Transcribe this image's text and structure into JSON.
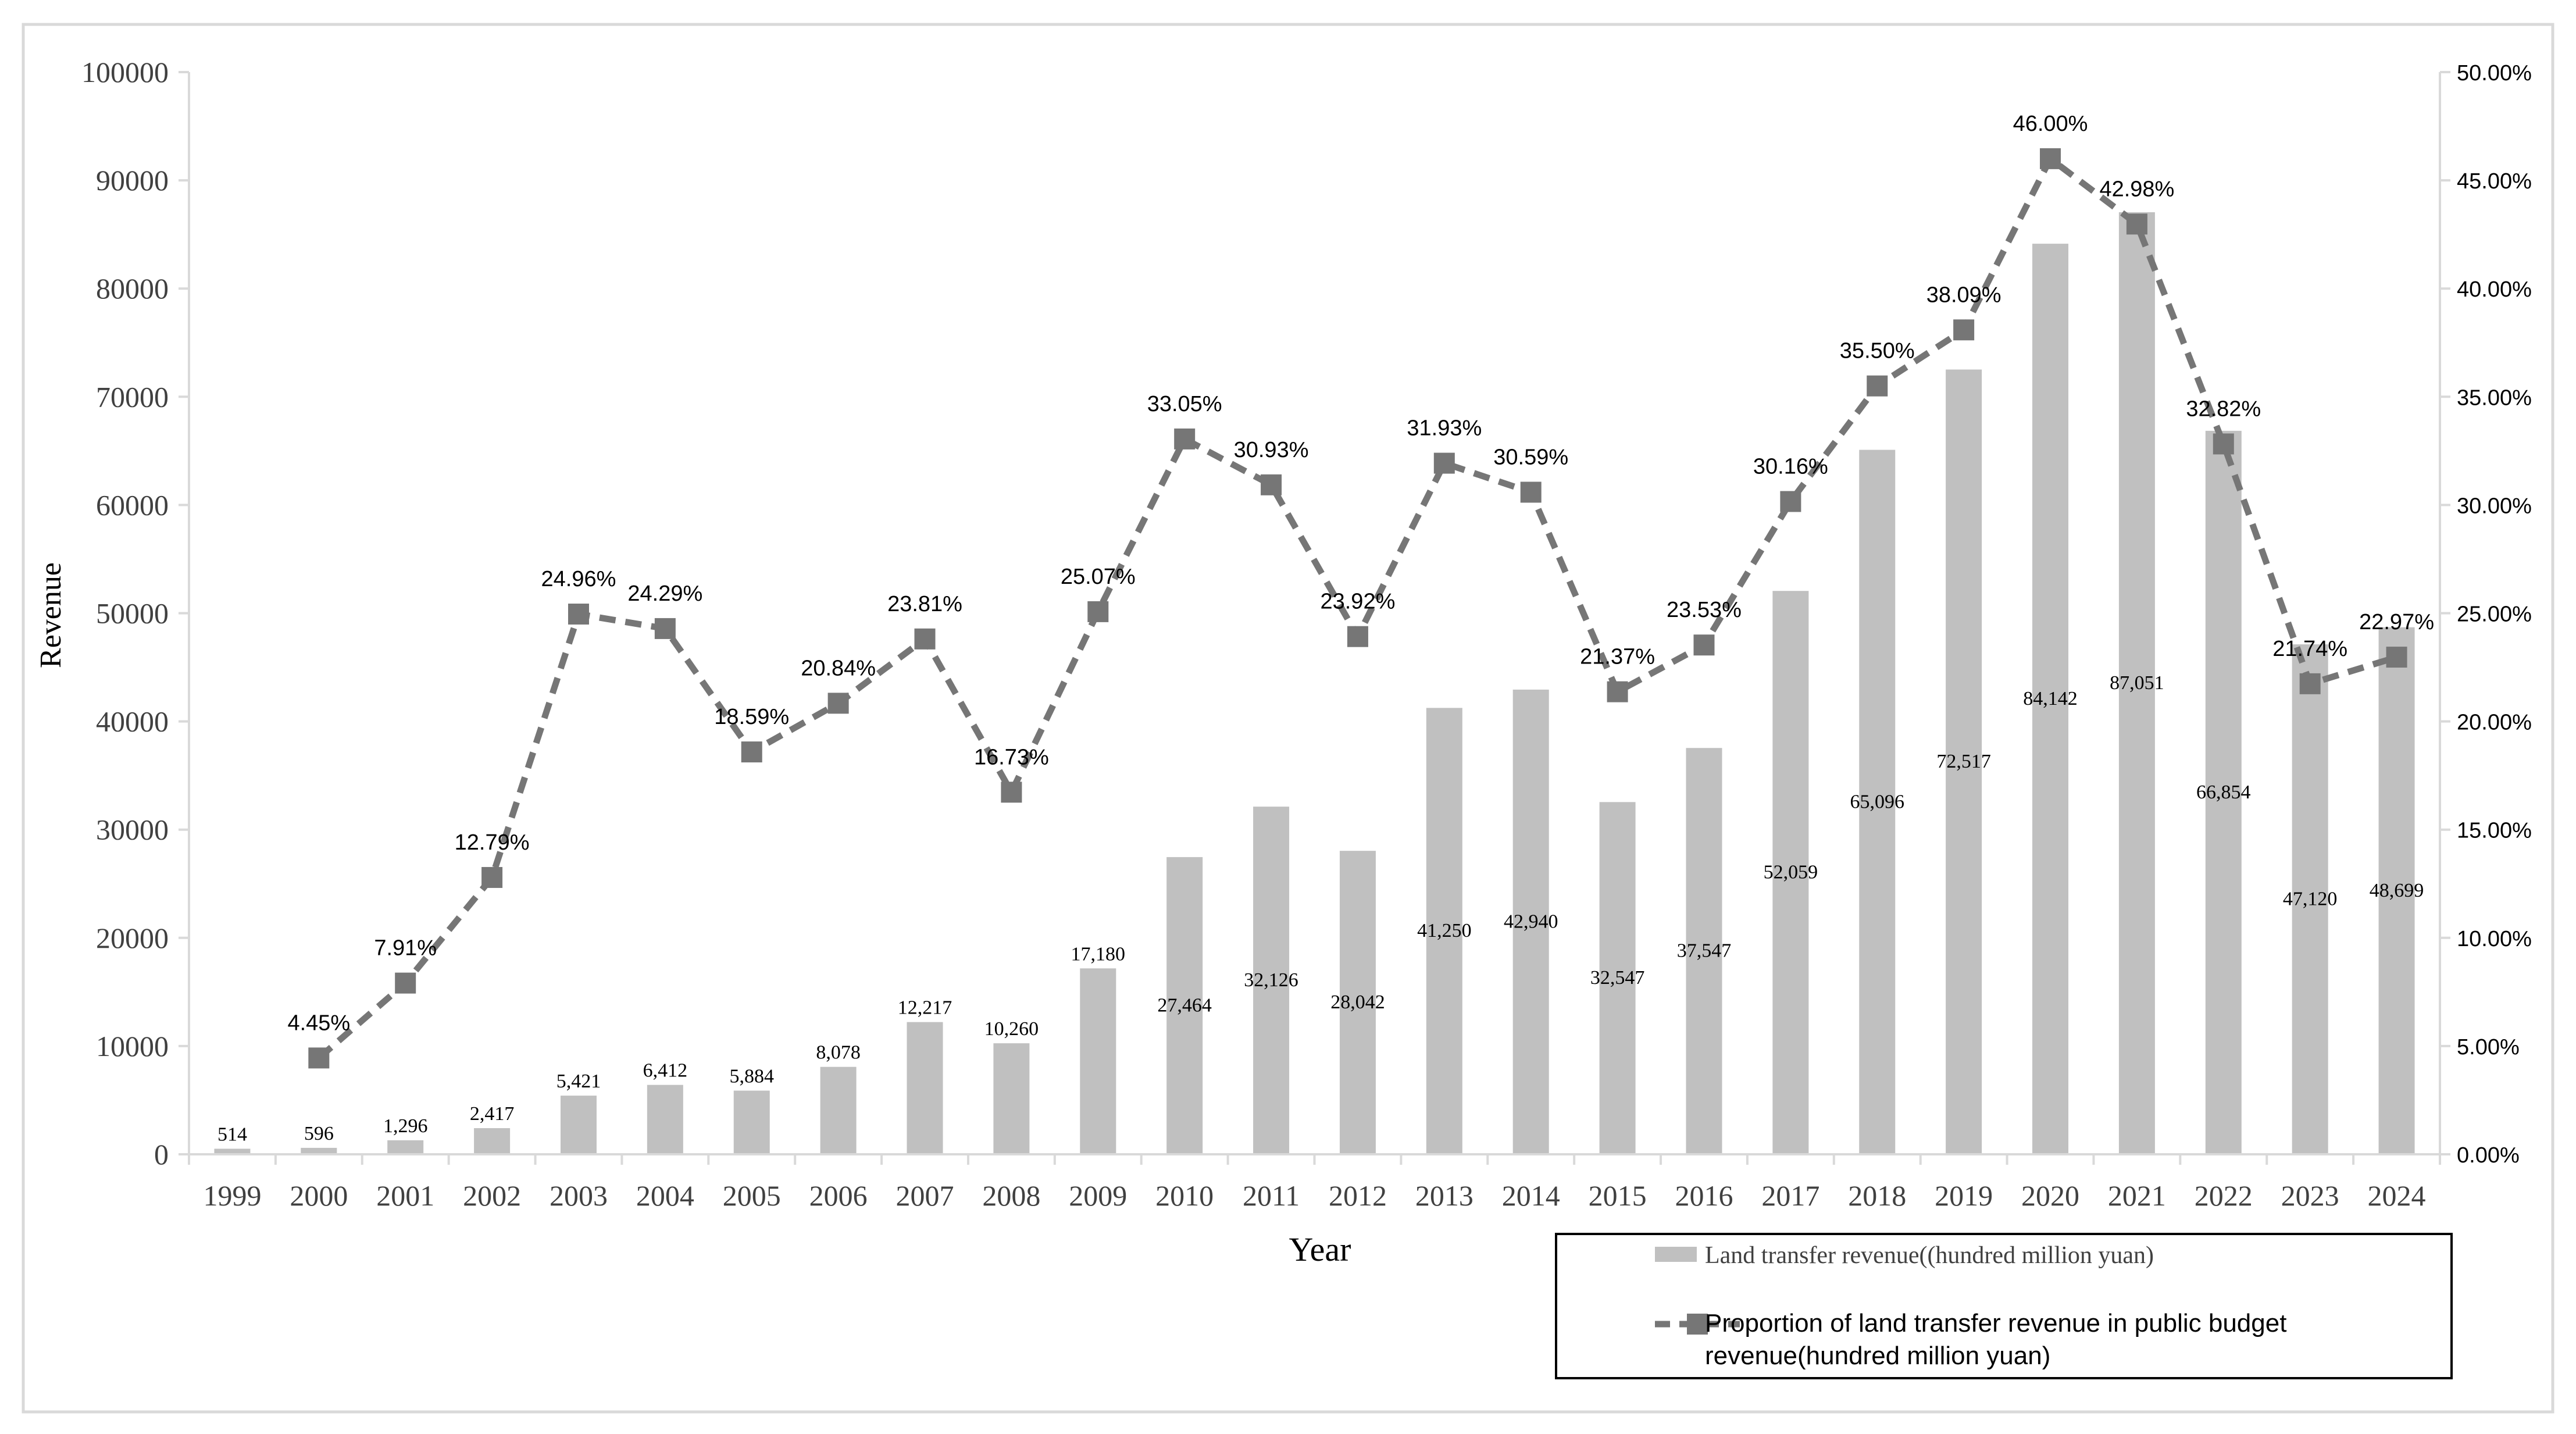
{
  "chart_data": {
    "type": "bar+line",
    "categories": [
      "1999",
      "2000",
      "2001",
      "2002",
      "2003",
      "2004",
      "2005",
      "2006",
      "2007",
      "2008",
      "2009",
      "2010",
      "2011",
      "2012",
      "2013",
      "2014",
      "2015",
      "2016",
      "2017",
      "2018",
      "2019",
      "2020",
      "2021",
      "2022",
      "2023",
      "2024"
    ],
    "series": [
      {
        "name": "Land transfer revenue((hundred million yuan)",
        "type": "bar",
        "axis": "left",
        "values": [
          514,
          596,
          1296,
          2417,
          5421,
          6412,
          5884,
          8078,
          12217,
          10260,
          17180,
          27464,
          32126,
          28042,
          41250,
          42940,
          32547,
          37547,
          52059,
          65096,
          72517,
          84142,
          87051,
          66854,
          47120,
          48699
        ],
        "labels": [
          "514",
          "596",
          "1,296",
          "2,417",
          "5,421",
          "6,412",
          "5,884",
          "8,078",
          "12,217",
          "10,260",
          "17,180",
          "27,464",
          "32,126",
          "28,042",
          "41,250",
          "42,940",
          "32,547",
          "37,547",
          "52,059",
          "65,096",
          "72,517",
          "84,142",
          "87,051",
          "66,854",
          "47,120",
          "48,699"
        ]
      },
      {
        "name": "Proportion of land transfer revenue in public budget revenue(hundred million yuan)",
        "type": "line",
        "axis": "right",
        "values": [
          null,
          4.45,
          7.91,
          12.79,
          24.96,
          24.29,
          18.59,
          20.84,
          23.81,
          16.73,
          25.07,
          33.05,
          30.93,
          23.92,
          31.93,
          30.59,
          21.37,
          23.53,
          30.16,
          35.5,
          38.09,
          46.0,
          42.98,
          32.82,
          21.74,
          22.97
        ],
        "labels": [
          "",
          "4.45%",
          "7.91%",
          "12.79%",
          "24.96%",
          "24.29%",
          "18.59%",
          "20.84%",
          "23.81%",
          "16.73%",
          "25.07%",
          "33.05%",
          "30.93%",
          "23.92%",
          "31.93%",
          "30.59%",
          "21.37%",
          "23.53%",
          "30.16%",
          "35.50%",
          "38.09%",
          "46.00%",
          "42.98%",
          "32.82%",
          "21.74%",
          "22.97%"
        ]
      }
    ],
    "xlabel": "Year",
    "ylabel": "Revenue",
    "ylim": [
      0,
      100000
    ],
    "y2lim": [
      0,
      50
    ],
    "yticks": [
      "0",
      "10000",
      "20000",
      "30000",
      "40000",
      "50000",
      "60000",
      "70000",
      "80000",
      "90000",
      "100000"
    ],
    "y2ticks": [
      "0.00%",
      "5.00%",
      "10.00%",
      "15.00%",
      "20.00%",
      "25.00%",
      "30.00%",
      "35.00%",
      "40.00%",
      "45.00%",
      "50.00%"
    ],
    "legend": {
      "position": "bottom-right",
      "items": [
        "Land transfer revenue((hundred million yuan)",
        "Proportion of land transfer revenue in public budget",
        "revenue(hundred million yuan)"
      ]
    },
    "colors": {
      "bar": "#c0c0c0",
      "line": "#767676",
      "axis": "#d9d9d9",
      "text": "#404040"
    }
  }
}
